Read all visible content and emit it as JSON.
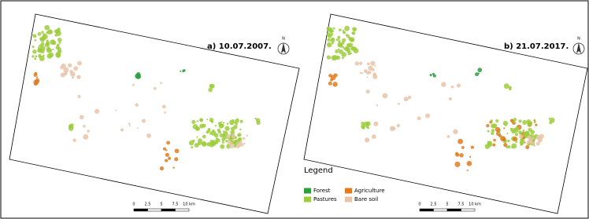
{
  "panels": [
    {
      "label": "a) 10.07.2007.",
      "north": "N",
      "scale_labels": [
        "0",
        "2.5",
        "5",
        "7.5",
        "10 km"
      ]
    },
    {
      "label": "b) 21.07.2017.",
      "north": "N",
      "scale_labels": [
        "0",
        "2.5",
        "5",
        "7.5",
        "10 km"
      ]
    }
  ],
  "legend": {
    "title": "Legend",
    "items": [
      {
        "name": "Forest",
        "color": "#2e9e3e"
      },
      {
        "name": "Agriculture",
        "color": "#e07b20"
      },
      {
        "name": "Pastures",
        "color": "#9ccc3c"
      },
      {
        "name": "Bare soil",
        "color": "#e8c4a8"
      }
    ]
  }
}
